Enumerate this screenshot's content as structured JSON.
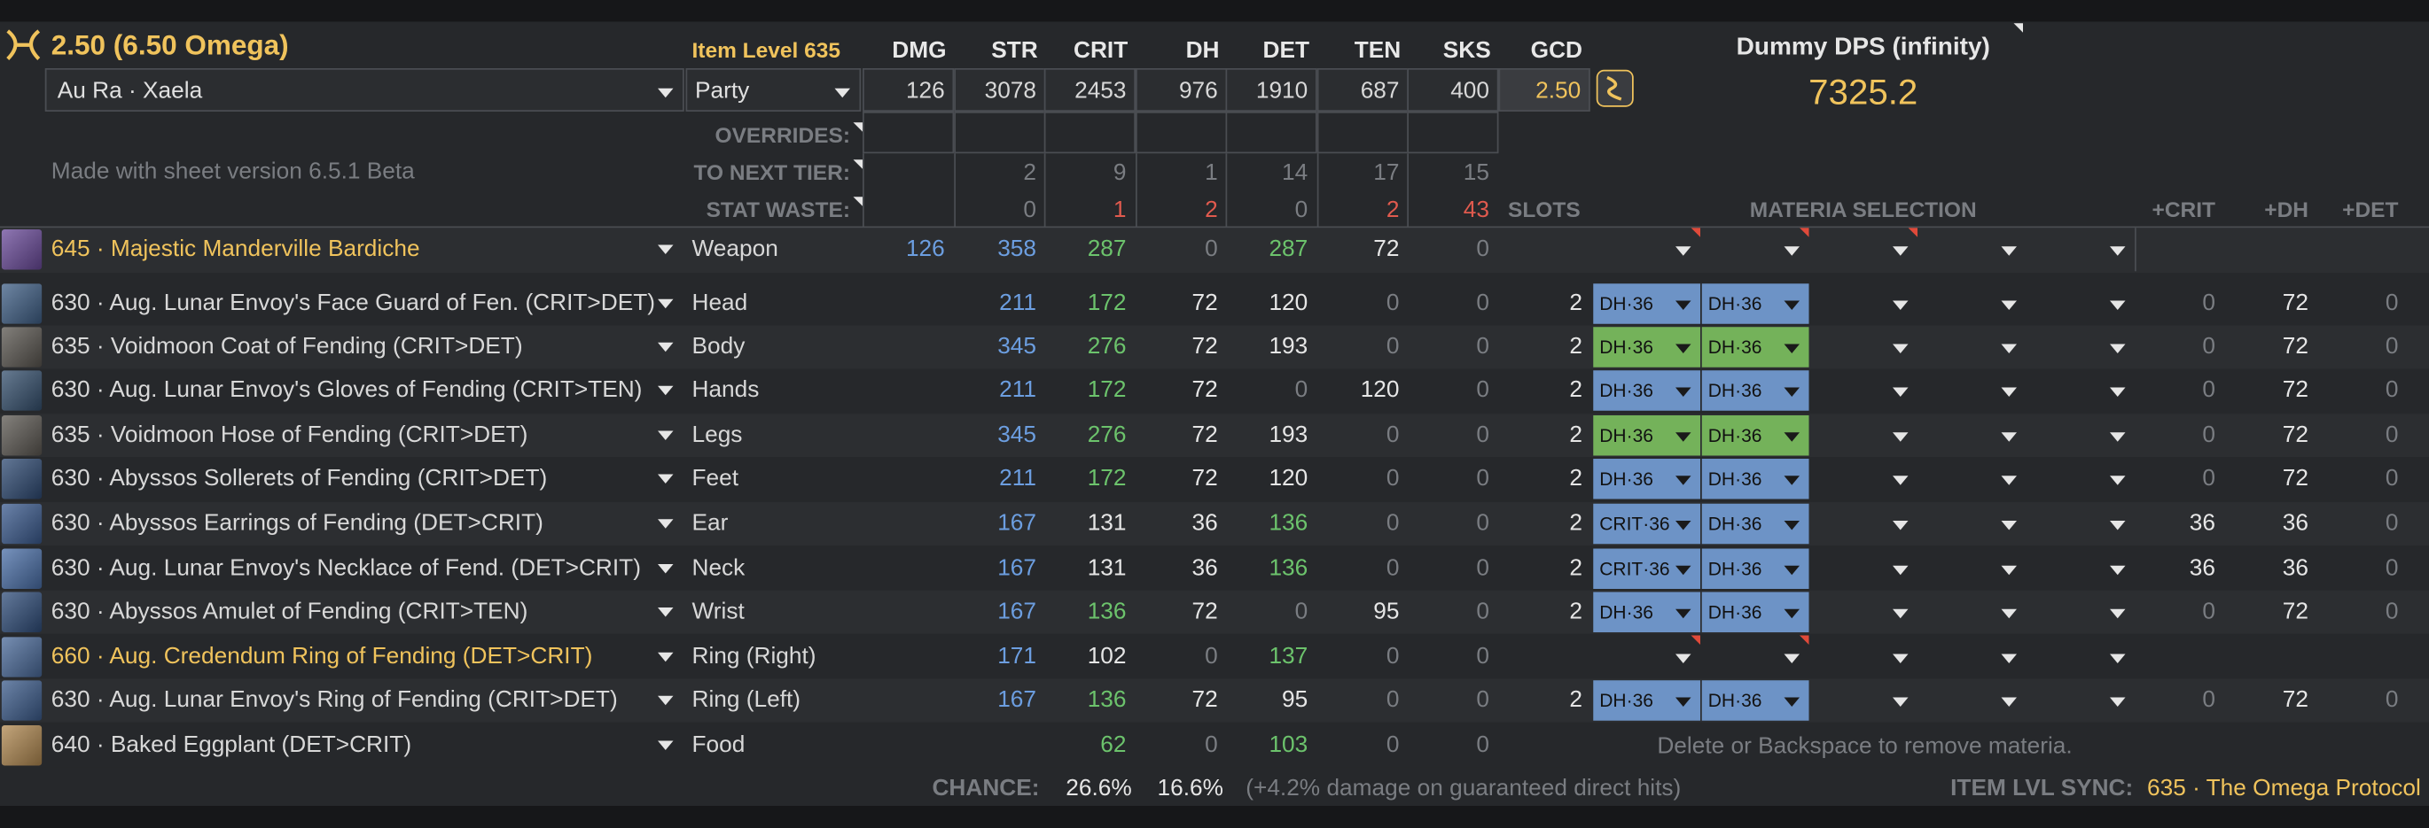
{
  "header": {
    "title": "2.50 (6.50 Omega)",
    "item_level": "Item Level 635",
    "race": "Au Ra · Xaela",
    "party": "Party",
    "sheet_version": "Made with sheet version 6.5.1 Beta",
    "dummy_label": "Dummy DPS (infinity)",
    "dummy_value": "7325.2"
  },
  "stat_columns": [
    "DMG",
    "STR",
    "CRIT",
    "DH",
    "DET",
    "TEN",
    "SKS",
    "GCD"
  ],
  "totals": [
    "126",
    "3078",
    "2453",
    "976",
    "1910",
    "687",
    "400",
    "2.50"
  ],
  "labels": {
    "overrides": "OVERRIDES:",
    "to_next_tier": "TO NEXT TIER:",
    "stat_waste": "STAT WASTE:",
    "slots": "SLOTS",
    "materia_selection": "MATERIA SELECTION",
    "plus_crit": "+CRIT",
    "plus_dh": "+DH",
    "plus_det": "+DET",
    "chance": "CHANCE:",
    "item_lvl_sync": "ITEM LVL SYNC:"
  },
  "to_next_tier": [
    "2",
    "9",
    "1",
    "14",
    "17",
    "15"
  ],
  "stat_waste": [
    "0",
    "1",
    "2",
    "0",
    "2",
    "43"
  ],
  "gear": [
    {
      "name": "645 · Majestic Manderville Bardiche",
      "slot": "Weapon",
      "dmg": "126",
      "str": "358",
      "crit": "287",
      "dh": "0",
      "det": "287",
      "ten": "72",
      "sks": "0",
      "slots": "",
      "m1": "",
      "m2": "",
      "pcrit": "",
      "pdh": "",
      "pdet": "",
      "highlight": true,
      "icon_color": "#6a4a9a"
    },
    {
      "name": "630 · Aug. Lunar Envoy's Face Guard of Fen. (CRIT>DET)",
      "slot": "Head",
      "dmg": "",
      "str": "211",
      "crit": "172",
      "dh": "72",
      "det": "120",
      "ten": "0",
      "sks": "0",
      "slots": "2",
      "m1": "DH·36",
      "m2": "DH·36",
      "pcrit": "0",
      "pdh": "72",
      "pdet": "0",
      "highlight": false,
      "icon_color": "#3f5f86"
    },
    {
      "name": "635 · Voidmoon Coat of Fending (CRIT>DET)",
      "slot": "Body",
      "dmg": "",
      "str": "345",
      "crit": "276",
      "dh": "72",
      "det": "193",
      "ten": "0",
      "sks": "0",
      "slots": "2",
      "m1": "DH·36",
      "m2": "DH·36",
      "pcrit": "0",
      "pdh": "72",
      "pdet": "0",
      "highlight": false,
      "icon_color": "#5a5650"
    },
    {
      "name": "630 · Aug. Lunar Envoy's Gloves of Fending (CRIT>TEN)",
      "slot": "Hands",
      "dmg": "",
      "str": "211",
      "crit": "172",
      "dh": "72",
      "det": "0",
      "ten": "120",
      "sks": "0",
      "slots": "2",
      "m1": "DH·36",
      "m2": "DH·36",
      "pcrit": "0",
      "pdh": "72",
      "pdet": "0",
      "highlight": false,
      "icon_color": "#35506e"
    },
    {
      "name": "635 · Voidmoon Hose of Fending (CRIT>DET)",
      "slot": "Legs",
      "dmg": "",
      "str": "345",
      "crit": "276",
      "dh": "72",
      "det": "193",
      "ten": "0",
      "sks": "0",
      "slots": "2",
      "m1": "DH·36",
      "m2": "DH·36",
      "pcrit": "0",
      "pdh": "72",
      "pdet": "0",
      "highlight": false,
      "icon_color": "#5c5852"
    },
    {
      "name": "630 · Abyssos Sollerets of Fending (CRIT>DET)",
      "slot": "Feet",
      "dmg": "",
      "str": "211",
      "crit": "172",
      "dh": "72",
      "det": "120",
      "ten": "0",
      "sks": "0",
      "slots": "2",
      "m1": "DH·36",
      "m2": "DH·36",
      "pcrit": "0",
      "pdh": "72",
      "pdet": "0",
      "highlight": false,
      "icon_color": "#2e4a73"
    },
    {
      "name": "630 · Abyssos Earrings of Fending (DET>CRIT)",
      "slot": "Ear",
      "dmg": "",
      "str": "167",
      "crit": "131",
      "dh": "36",
      "det": "136",
      "ten": "0",
      "sks": "0",
      "slots": "2",
      "m1": "CRIT·36",
      "m2": "DH·36",
      "pcrit": "36",
      "pdh": "36",
      "pdet": "0",
      "highlight": false,
      "icon_color": "#3a5a8e"
    },
    {
      "name": "630 · Aug. Lunar Envoy's Necklace of Fend. (DET>CRIT)",
      "slot": "Neck",
      "dmg": "",
      "str": "167",
      "crit": "131",
      "dh": "36",
      "det": "136",
      "ten": "0",
      "sks": "0",
      "slots": "2",
      "m1": "CRIT·36",
      "m2": "DH·36",
      "pcrit": "36",
      "pdh": "36",
      "pdet": "0",
      "highlight": false,
      "icon_color": "#4a6fa8"
    },
    {
      "name": "630 · Abyssos Amulet of Fending (CRIT>TEN)",
      "slot": "Wrist",
      "dmg": "",
      "str": "167",
      "crit": "136",
      "dh": "72",
      "det": "0",
      "ten": "95",
      "sks": "0",
      "slots": "2",
      "m1": "DH·36",
      "m2": "DH·36",
      "pcrit": "0",
      "pdh": "72",
      "pdet": "0",
      "highlight": false,
      "icon_color": "#2f4d7a"
    },
    {
      "name": "660 · Aug. Credendum Ring of Fending (DET>CRIT)",
      "slot": "Ring (Right)",
      "dmg": "",
      "str": "171",
      "crit": "102",
      "dh": "0",
      "det": "137",
      "ten": "0",
      "sks": "0",
      "slots": "",
      "m1": "",
      "m2": "",
      "pcrit": "",
      "pdh": "",
      "pdet": "",
      "highlight": true,
      "icon_color": "#4a6a9a"
    },
    {
      "name": "630 · Aug. Lunar Envoy's Ring of Fending (CRIT>DET)",
      "slot": "Ring (Left)",
      "dmg": "",
      "str": "167",
      "crit": "136",
      "dh": "72",
      "det": "95",
      "ten": "0",
      "sks": "0",
      "slots": "2",
      "m1": "DH·36",
      "m2": "DH·36",
      "pcrit": "0",
      "pdh": "72",
      "pdet": "0",
      "highlight": false,
      "icon_color": "#3c5c8c"
    },
    {
      "name": "640 · Baked Eggplant (DET>CRIT)",
      "slot": "Food",
      "dmg": "",
      "str": "",
      "crit": "62",
      "dh": "0",
      "det": "103",
      "ten": "0",
      "sks": "0",
      "slots": "",
      "m1": "",
      "m2": "",
      "pcrit": "",
      "pdh": "",
      "pdet": "",
      "highlight": false,
      "icon_color": "#b08850"
    }
  ],
  "food_note": "Delete or Backspace to remove materia.",
  "footer": {
    "crit_chance": "26.6%",
    "dh_chance": "16.6%",
    "dh_note": "(+4.2% damage on guaranteed direct hits)",
    "sync_value": "635 · The Omega Protocol"
  },
  "colors": {
    "gold": "#f0c35c",
    "blue": "#6c9ee0",
    "green": "#6cc36c",
    "red": "#e05a4e",
    "materia_blue": "#6d93c6",
    "materia_green": "#74b25a"
  }
}
